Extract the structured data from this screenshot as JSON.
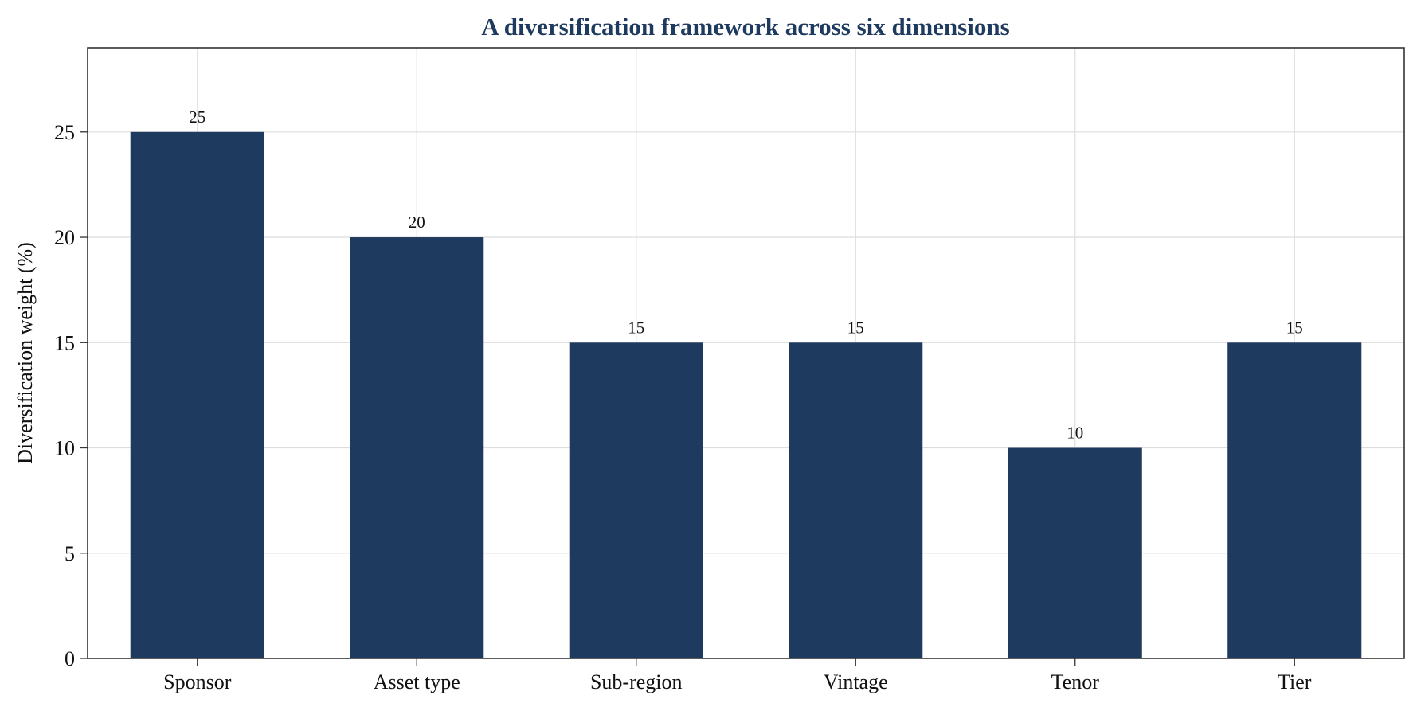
{
  "chart_data": {
    "type": "bar",
    "title": "A diversification framework across six dimensions",
    "xlabel": "",
    "ylabel": "Diversification weight (%)",
    "categories": [
      "Sponsor",
      "Asset type",
      "Sub-region",
      "Vintage",
      "Tenor",
      "Tier"
    ],
    "values": [
      25,
      20,
      15,
      15,
      10,
      15
    ],
    "data_labels": [
      "25",
      "20",
      "15",
      "15",
      "10",
      "15"
    ],
    "ylim": [
      0,
      29
    ],
    "yticks": [
      0,
      5,
      10,
      15,
      20,
      25
    ],
    "grid": true,
    "legend": "none",
    "colors": {
      "bar": "#1f3a5f",
      "title": "#1f3a5f",
      "grid": "#dddddd",
      "axis": "#333333"
    }
  }
}
